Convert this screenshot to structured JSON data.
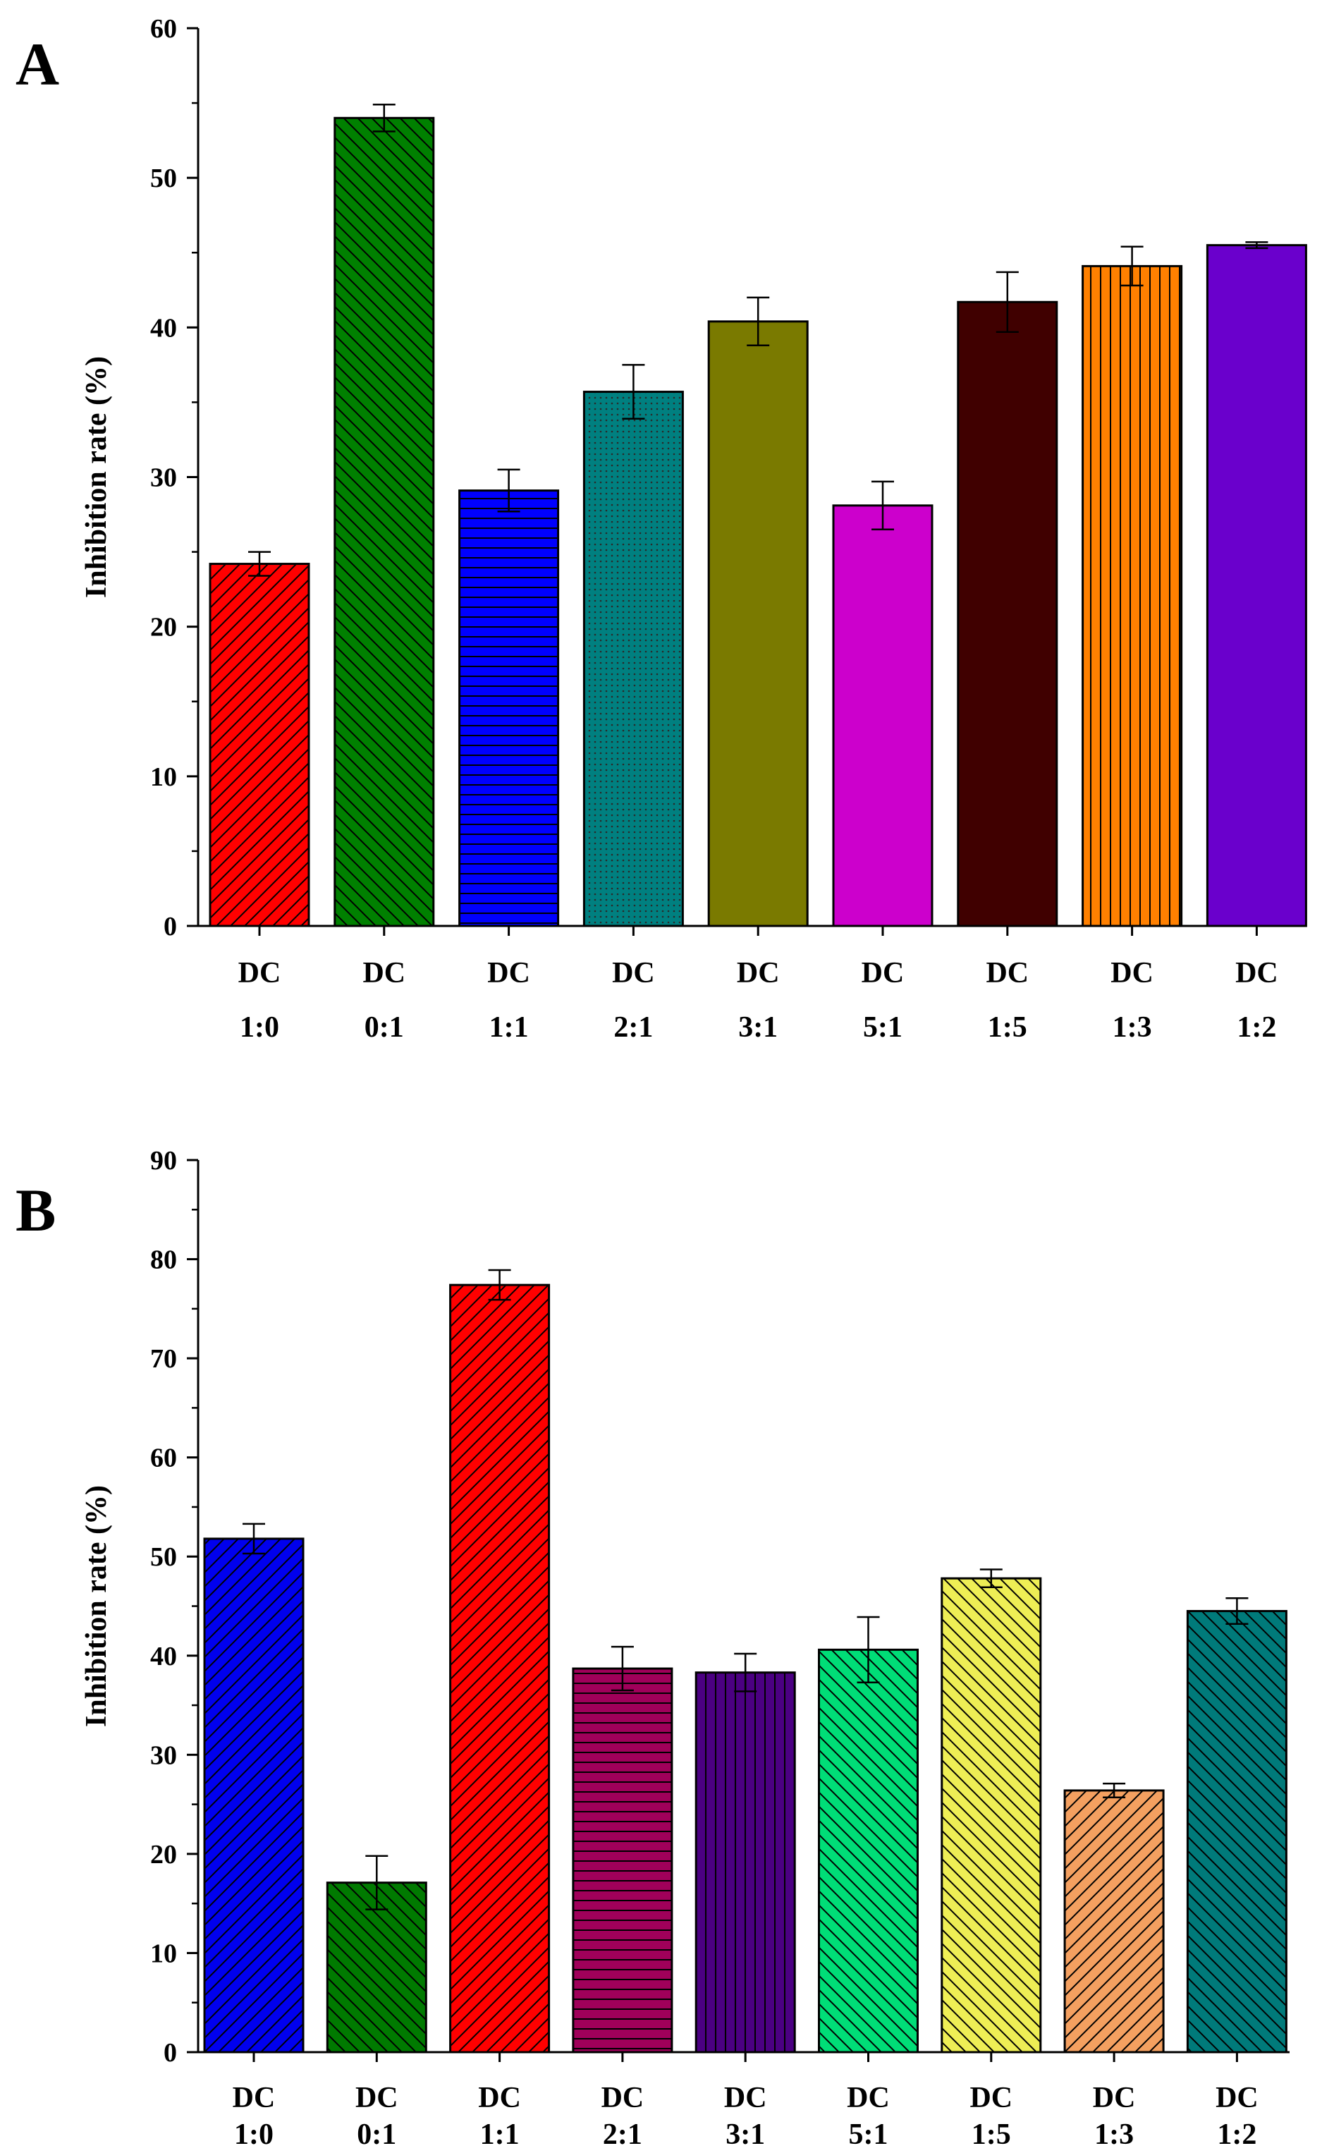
{
  "chart_data": [
    {
      "type": "bar",
      "panel_label": "A",
      "title": "",
      "xlabel": "",
      "ylabel": "Inhibition rate (%)",
      "ylim": [
        0,
        60
      ],
      "yticks": [
        0,
        10,
        20,
        30,
        40,
        50,
        60
      ],
      "categories": [
        {
          "top": "DC",
          "bottom": "1:0"
        },
        {
          "top": "DC",
          "bottom": "0:1"
        },
        {
          "top": "DC",
          "bottom": "1:1"
        },
        {
          "top": "DC",
          "bottom": "2:1"
        },
        {
          "top": "DC",
          "bottom": "3:1"
        },
        {
          "top": "DC",
          "bottom": "5:1"
        },
        {
          "top": "DC",
          "bottom": "1:5"
        },
        {
          "top": "DC",
          "bottom": "1:3"
        },
        {
          "top": "DC",
          "bottom": "1:2"
        }
      ],
      "values": [
        24.2,
        54.0,
        29.1,
        35.7,
        40.4,
        28.1,
        41.7,
        44.1,
        45.5
      ],
      "errors": [
        0.8,
        0.9,
        1.4,
        1.8,
        1.6,
        1.6,
        2.0,
        1.3,
        0.2
      ],
      "colors": [
        "#ff0000",
        "#008000",
        "#0000ff",
        "#008080",
        "#7a7a00",
        "#cc00cc",
        "#400000",
        "#ff8000",
        "#6a00cc"
      ],
      "patterns": [
        "diag-up",
        "diag-down",
        "horizontal",
        "dots",
        "none",
        "none",
        "none",
        "vertical",
        "none"
      ]
    },
    {
      "type": "bar",
      "panel_label": "B",
      "title": "",
      "xlabel": "",
      "ylabel": "Inhibition rate (%)",
      "ylim": [
        0,
        90
      ],
      "yticks": [
        0,
        10,
        20,
        30,
        40,
        50,
        60,
        70,
        80,
        90
      ],
      "categories": [
        {
          "top": "DC",
          "bottom": "1:0"
        },
        {
          "top": "DC",
          "bottom": "0:1"
        },
        {
          "top": "DC",
          "bottom": "1:1"
        },
        {
          "top": "DC",
          "bottom": "2:1"
        },
        {
          "top": "DC",
          "bottom": "3:1"
        },
        {
          "top": "DC",
          "bottom": "5:1"
        },
        {
          "top": "DC",
          "bottom": "1:5"
        },
        {
          "top": "DC",
          "bottom": "1:3"
        },
        {
          "top": "DC",
          "bottom": "1:2"
        }
      ],
      "values": [
        51.8,
        17.1,
        77.4,
        38.7,
        38.3,
        40.6,
        47.8,
        26.4,
        44.5
      ],
      "errors": [
        1.5,
        2.7,
        1.5,
        2.2,
        1.9,
        3.3,
        0.9,
        0.7,
        1.3
      ],
      "colors": [
        "#0000ee",
        "#007a00",
        "#ff0000",
        "#a0005a",
        "#4b0082",
        "#00dd77",
        "#eeee55",
        "#f4a060",
        "#007a7a"
      ],
      "patterns": [
        "diag-up",
        "diag-down",
        "diag-up",
        "horizontal",
        "vertical",
        "diag-down",
        "diag-down",
        "diag-up",
        "diag-down"
      ]
    }
  ]
}
